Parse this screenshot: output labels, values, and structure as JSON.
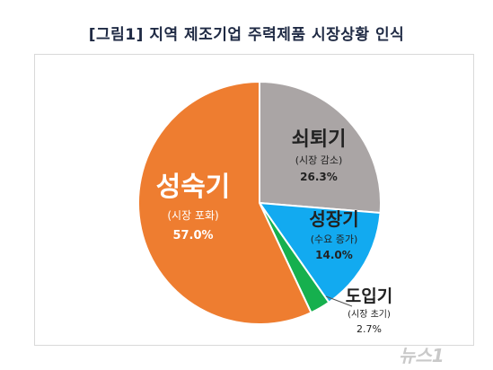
{
  "chart_data": {
    "type": "pie",
    "title": "[그림1] 지역 제조기업 주력제품 시장상황 인식",
    "slices": [
      {
        "label": "쇠퇴기",
        "note": "(시장 감소)",
        "value_text": "26.3%",
        "value": 26.3,
        "color": "#aaa5a5"
      },
      {
        "label": "성장기",
        "note": "(수요 증가)",
        "value_text": "14.0%",
        "value": 14.0,
        "color": "#12aaf0"
      },
      {
        "label": "도입기",
        "note": "(시장 초기)",
        "value_text": "2.7%",
        "value": 2.7,
        "color": "#16b04e"
      },
      {
        "label": "성숙기",
        "note": "(시장 포화)",
        "value_text": "57.0%",
        "value": 57.0,
        "color": "#ee7d30"
      }
    ],
    "start_angle_deg": 0,
    "direction": "clockwise"
  },
  "watermark": "뉴스1"
}
